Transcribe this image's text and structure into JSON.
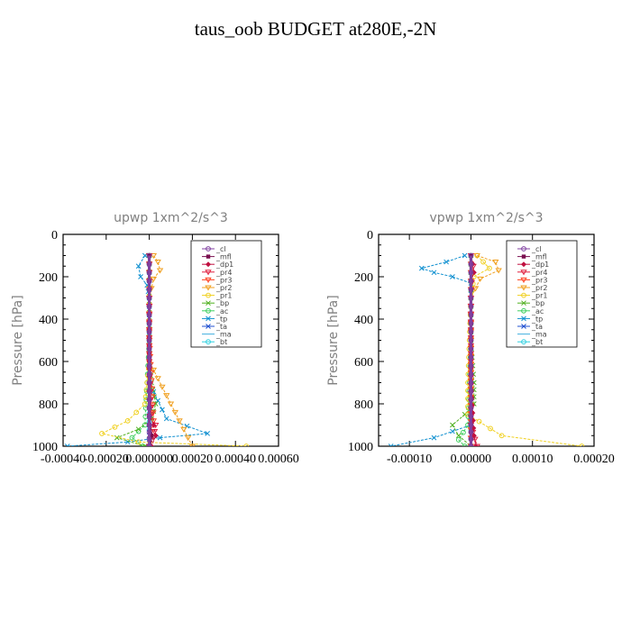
{
  "title": "taus_oob  BUDGET at280E,-2N",
  "chart_data": [
    {
      "type": "line",
      "title": "upwp   1xm^2/s^3",
      "ylabel": "Pressure [hPa]",
      "xlabel": "",
      "xlim": [
        -0.0004,
        0.0006
      ],
      "ylim": [
        1000,
        0
      ],
      "xticks": [
        -0.0004,
        -0.0002,
        0.0,
        0.0002,
        0.0004,
        0.0006
      ],
      "xtick_labels": [
        "-0.00040",
        "-0.00020",
        "0.000000",
        "0.00020",
        "0.00040",
        "0.00060"
      ],
      "yticks": [
        0,
        200,
        400,
        600,
        800,
        1000
      ],
      "ytick_labels": [
        "0",
        "200",
        "400",
        "600",
        "800",
        "1000"
      ],
      "grid": false,
      "legend_placement": "top-right",
      "series": [
        {
          "name": "_cl",
          "color": "#8040a0",
          "marker": "circle",
          "p": [
            100,
            300,
            500,
            700,
            900,
            1000
          ],
          "v": [
            0,
            0,
            0,
            0,
            0,
            0
          ]
        },
        {
          "name": "_mfl",
          "color": "#7a1050",
          "marker": "square",
          "p": [
            100,
            300,
            500,
            700,
            900,
            950,
            1000
          ],
          "v": [
            0,
            0,
            0,
            0,
            0,
            1e-05,
            0
          ]
        },
        {
          "name": "_dp1",
          "color": "#c01040",
          "marker": "diamond",
          "p": [
            100,
            300,
            600,
            850,
            900,
            950,
            1000
          ],
          "v": [
            0,
            0,
            0,
            0,
            2e-05,
            3e-05,
            1e-05
          ]
        },
        {
          "name": "_pr4",
          "color": "#e02040",
          "marker": "triangle",
          "p": [
            100,
            300,
            600,
            850,
            900,
            960,
            1000
          ],
          "v": [
            0,
            0,
            0,
            1e-05,
            3e-05,
            2e-05,
            0
          ]
        },
        {
          "name": "_pr3",
          "color": "#ff4020",
          "marker": "triangle",
          "p": [
            100,
            500,
            880,
            930,
            1000
          ],
          "v": [
            0,
            0,
            2e-05,
            1e-05,
            0
          ]
        },
        {
          "name": "_pr2",
          "color": "#f0a020",
          "marker": "triangle",
          "p": [
            100,
            130,
            170,
            210,
            300,
            600,
            1000
          ],
          "v": [
            2e-05,
            4e-05,
            5e-05,
            2e-05,
            0,
            0,
            0.0002
          ]
        },
        {
          "name": "_pr1",
          "color": "#f0d020",
          "marker": "circle",
          "p": [
            100,
            600,
            700,
            800,
            880,
            940,
            980,
            1000
          ],
          "v": [
            0,
            0,
            -1e-05,
            -2e-05,
            -0.0001,
            -0.00022,
            -5e-05,
            0.00045
          ]
        },
        {
          "name": "_bp",
          "color": "#50b020",
          "marker": "cross",
          "p": [
            100,
            600,
            700,
            800,
            870,
            920,
            960,
            1000
          ],
          "v": [
            0,
            0,
            1e-05,
            3e-05,
            1e-05,
            -5e-05,
            -0.00015,
            -2e-05
          ]
        },
        {
          "name": "_ac",
          "color": "#40d060",
          "marker": "circle",
          "p": [
            100,
            500,
            900,
            960,
            1000
          ],
          "v": [
            0,
            0,
            -2e-05,
            -8e-05,
            -3e-05
          ]
        },
        {
          "name": "_tp",
          "color": "#1090d0",
          "marker": "cross",
          "p": [
            100,
            150,
            200,
            240,
            300,
            700,
            870,
            940,
            960,
            980,
            1000
          ],
          "v": [
            -2e-05,
            -5e-05,
            -4e-05,
            -1e-05,
            0,
            0,
            8e-05,
            0.00027,
            5e-05,
            -0.0001,
            -0.00038
          ]
        },
        {
          "name": "_ta",
          "color": "#2050d0",
          "marker": "cross",
          "p": [
            100,
            500,
            900,
            1000
          ],
          "v": [
            0,
            0,
            0,
            0
          ]
        },
        {
          "name": "_ma",
          "color": "#40b0e0",
          "marker": "none",
          "p": [
            100,
            1000
          ],
          "v": [
            0,
            0
          ]
        },
        {
          "name": "_bt",
          "color": "#30d0e0",
          "marker": "circle",
          "p": [
            100,
            500,
            1000
          ],
          "v": [
            0,
            0,
            0
          ]
        }
      ]
    },
    {
      "type": "line",
      "title": "vpwp   1xm^2/s^3",
      "ylabel": "Pressure [hPa]",
      "xlabel": "",
      "xlim": [
        -0.00015,
        0.0002
      ],
      "ylim": [
        1000,
        0
      ],
      "xticks": [
        -0.0001,
        0.0,
        0.0001,
        0.0002
      ],
      "xtick_labels": [
        "-0.00010",
        "0.00000",
        "0.00010",
        "0.00020"
      ],
      "yticks": [
        0,
        200,
        400,
        600,
        800,
        1000
      ],
      "ytick_labels": [
        "0",
        "200",
        "400",
        "600",
        "800",
        "1000"
      ],
      "grid": false,
      "legend_placement": "top-right",
      "series": [
        {
          "name": "_cl",
          "color": "#8040a0",
          "marker": "circle",
          "p": [
            100,
            300,
            500,
            700,
            900,
            1000
          ],
          "v": [
            0,
            0,
            0,
            0,
            0,
            0
          ]
        },
        {
          "name": "_mfl",
          "color": "#7a1050",
          "marker": "square",
          "p": [
            100,
            300,
            500,
            700,
            900,
            1000
          ],
          "v": [
            0,
            0,
            0,
            0,
            0,
            0
          ]
        },
        {
          "name": "_dp1",
          "color": "#c01040",
          "marker": "diamond",
          "p": [
            100,
            140,
            180,
            220,
            300,
            700,
            950,
            1000
          ],
          "v": [
            0,
            3e-06,
            5e-06,
            0,
            0,
            0,
            5e-06,
            8e-06
          ]
        },
        {
          "name": "_pr4",
          "color": "#e02040",
          "marker": "triangle",
          "p": [
            100,
            150,
            190,
            300,
            900,
            1000
          ],
          "v": [
            0,
            4e-06,
            2e-06,
            0,
            0,
            1e-05
          ]
        },
        {
          "name": "_pr3",
          "color": "#ff4020",
          "marker": "triangle",
          "p": [
            100,
            500,
            1000
          ],
          "v": [
            0,
            0,
            0
          ]
        },
        {
          "name": "_pr2",
          "color": "#f0a020",
          "marker": "triangle",
          "p": [
            100,
            130,
            170,
            210,
            300,
            1000
          ],
          "v": [
            1e-05,
            4e-05,
            4.5e-05,
            1.5e-05,
            0,
            0
          ]
        },
        {
          "name": "_pr1",
          "color": "#f0d020",
          "marker": "circle",
          "p": [
            100,
            130,
            160,
            200,
            300,
            700,
            850,
            950,
            1000
          ],
          "v": [
            1e-05,
            2e-05,
            3e-05,
            5e-06,
            0,
            -5e-06,
            -5e-06,
            5e-05,
            0.00018
          ]
        },
        {
          "name": "_bp",
          "color": "#50b020",
          "marker": "cross",
          "p": [
            100,
            500,
            700,
            800,
            850,
            900,
            950,
            1000
          ],
          "v": [
            0,
            0,
            5e-06,
            5e-06,
            -1e-05,
            -3e-05,
            -2e-05,
            0
          ]
        },
        {
          "name": "_ac",
          "color": "#40d060",
          "marker": "circle",
          "p": [
            100,
            500,
            900,
            970,
            1000
          ],
          "v": [
            0,
            0,
            -5e-06,
            -2e-05,
            -1e-05
          ]
        },
        {
          "name": "_tp",
          "color": "#1090d0",
          "marker": "cross",
          "p": [
            100,
            130,
            160,
            180,
            200,
            230,
            300,
            900,
            960,
            1000
          ],
          "v": [
            -1e-05,
            -4e-05,
            -8e-05,
            -6e-05,
            -3e-05,
            0,
            0,
            0,
            -6e-05,
            -0.00013
          ]
        },
        {
          "name": "_ta",
          "color": "#2050d0",
          "marker": "cross",
          "p": [
            100,
            500,
            1000
          ],
          "v": [
            0,
            0,
            0
          ]
        },
        {
          "name": "_ma",
          "color": "#40b0e0",
          "marker": "none",
          "p": [
            100,
            1000
          ],
          "v": [
            0,
            0
          ]
        },
        {
          "name": "_bt",
          "color": "#30d0e0",
          "marker": "circle",
          "p": [
            100,
            500,
            1000
          ],
          "v": [
            0,
            0,
            0
          ]
        }
      ]
    }
  ]
}
